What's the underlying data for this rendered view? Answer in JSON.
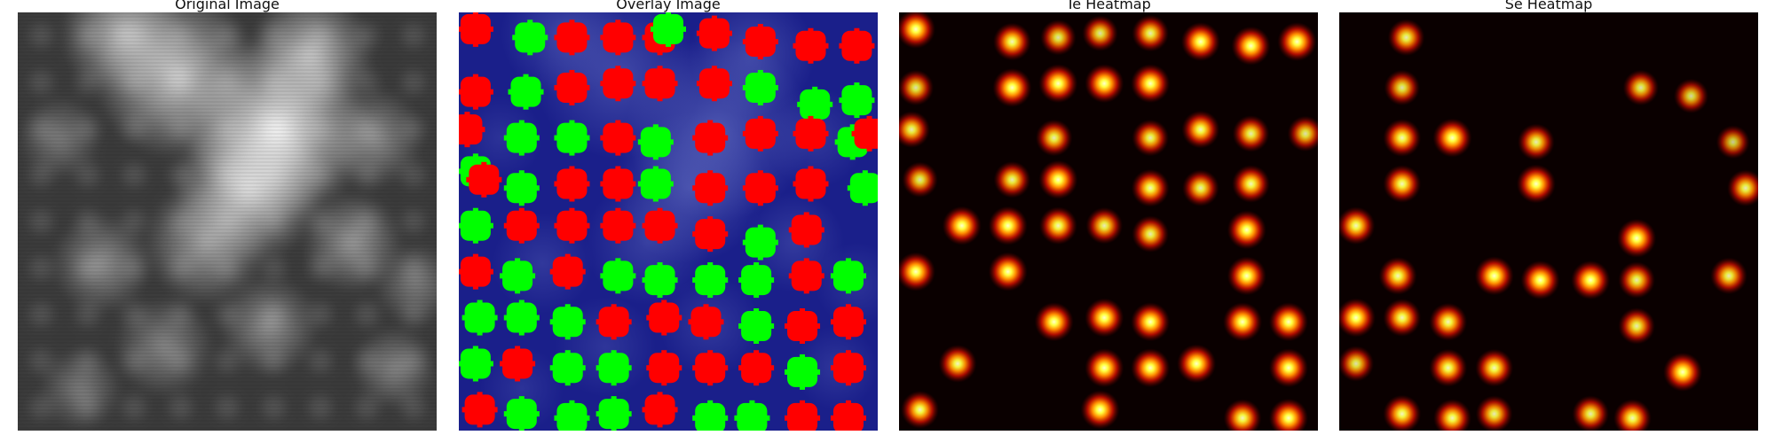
{
  "panels": [
    {
      "id": "original",
      "title": "Original Image"
    },
    {
      "id": "overlay",
      "title": "Overlay Image"
    },
    {
      "id": "te",
      "title": "Te Heatmap"
    },
    {
      "id": "se",
      "title": "Se Heatmap"
    }
  ],
  "colors": {
    "overlay_bg": "#1a1f8a",
    "marker_red": "#ff0000",
    "marker_green": "#00ff00",
    "heat_bg": "#0a0000"
  },
  "markers": [
    {
      "x": 0.04,
      "y": 0.04,
      "c": "r"
    },
    {
      "x": 0.17,
      "y": 0.06,
      "c": "g"
    },
    {
      "x": 0.27,
      "y": 0.06,
      "c": "r"
    },
    {
      "x": 0.38,
      "y": 0.06,
      "c": "r"
    },
    {
      "x": 0.48,
      "y": 0.06,
      "c": "r"
    },
    {
      "x": 0.5,
      "y": 0.04,
      "c": "g"
    },
    {
      "x": 0.61,
      "y": 0.05,
      "c": "r"
    },
    {
      "x": 0.72,
      "y": 0.07,
      "c": "r"
    },
    {
      "x": 0.84,
      "y": 0.08,
      "c": "r"
    },
    {
      "x": 0.95,
      "y": 0.08,
      "c": "r"
    },
    {
      "x": 0.04,
      "y": 0.19,
      "c": "r"
    },
    {
      "x": 0.16,
      "y": 0.19,
      "c": "g"
    },
    {
      "x": 0.27,
      "y": 0.18,
      "c": "r"
    },
    {
      "x": 0.38,
      "y": 0.17,
      "c": "r"
    },
    {
      "x": 0.48,
      "y": 0.17,
      "c": "r"
    },
    {
      "x": 0.61,
      "y": 0.17,
      "c": "r"
    },
    {
      "x": 0.72,
      "y": 0.18,
      "c": "g"
    },
    {
      "x": 0.85,
      "y": 0.22,
      "c": "g"
    },
    {
      "x": 0.95,
      "y": 0.21,
      "c": "g"
    },
    {
      "x": 0.02,
      "y": 0.28,
      "c": "r"
    },
    {
      "x": 0.15,
      "y": 0.3,
      "c": "g"
    },
    {
      "x": 0.27,
      "y": 0.3,
      "c": "g"
    },
    {
      "x": 0.38,
      "y": 0.3,
      "c": "r"
    },
    {
      "x": 0.47,
      "y": 0.31,
      "c": "g"
    },
    {
      "x": 0.6,
      "y": 0.3,
      "c": "r"
    },
    {
      "x": 0.72,
      "y": 0.29,
      "c": "r"
    },
    {
      "x": 0.84,
      "y": 0.29,
      "c": "r"
    },
    {
      "x": 0.94,
      "y": 0.31,
      "c": "g"
    },
    {
      "x": 0.98,
      "y": 0.29,
      "c": "r"
    },
    {
      "x": 0.04,
      "y": 0.38,
      "c": "g"
    },
    {
      "x": 0.06,
      "y": 0.4,
      "c": "r"
    },
    {
      "x": 0.15,
      "y": 0.42,
      "c": "g"
    },
    {
      "x": 0.27,
      "y": 0.41,
      "c": "r"
    },
    {
      "x": 0.38,
      "y": 0.41,
      "c": "r"
    },
    {
      "x": 0.47,
      "y": 0.41,
      "c": "g"
    },
    {
      "x": 0.6,
      "y": 0.42,
      "c": "r"
    },
    {
      "x": 0.72,
      "y": 0.42,
      "c": "r"
    },
    {
      "x": 0.84,
      "y": 0.41,
      "c": "r"
    },
    {
      "x": 0.97,
      "y": 0.42,
      "c": "g"
    },
    {
      "x": 0.04,
      "y": 0.51,
      "c": "g"
    },
    {
      "x": 0.15,
      "y": 0.51,
      "c": "r"
    },
    {
      "x": 0.27,
      "y": 0.51,
      "c": "r"
    },
    {
      "x": 0.38,
      "y": 0.51,
      "c": "r"
    },
    {
      "x": 0.48,
      "y": 0.51,
      "c": "r"
    },
    {
      "x": 0.6,
      "y": 0.53,
      "c": "r"
    },
    {
      "x": 0.72,
      "y": 0.55,
      "c": "g"
    },
    {
      "x": 0.83,
      "y": 0.52,
      "c": "r"
    },
    {
      "x": 0.04,
      "y": 0.62,
      "c": "r"
    },
    {
      "x": 0.14,
      "y": 0.63,
      "c": "g"
    },
    {
      "x": 0.26,
      "y": 0.62,
      "c": "r"
    },
    {
      "x": 0.38,
      "y": 0.63,
      "c": "g"
    },
    {
      "x": 0.48,
      "y": 0.64,
      "c": "g"
    },
    {
      "x": 0.6,
      "y": 0.64,
      "c": "g"
    },
    {
      "x": 0.71,
      "y": 0.64,
      "c": "g"
    },
    {
      "x": 0.83,
      "y": 0.63,
      "c": "r"
    },
    {
      "x": 0.93,
      "y": 0.63,
      "c": "g"
    },
    {
      "x": 0.05,
      "y": 0.73,
      "c": "g"
    },
    {
      "x": 0.15,
      "y": 0.73,
      "c": "g"
    },
    {
      "x": 0.26,
      "y": 0.74,
      "c": "g"
    },
    {
      "x": 0.37,
      "y": 0.74,
      "c": "r"
    },
    {
      "x": 0.49,
      "y": 0.73,
      "c": "r"
    },
    {
      "x": 0.59,
      "y": 0.74,
      "c": "r"
    },
    {
      "x": 0.71,
      "y": 0.75,
      "c": "g"
    },
    {
      "x": 0.82,
      "y": 0.75,
      "c": "r"
    },
    {
      "x": 0.93,
      "y": 0.74,
      "c": "r"
    },
    {
      "x": 0.04,
      "y": 0.84,
      "c": "g"
    },
    {
      "x": 0.14,
      "y": 0.84,
      "c": "r"
    },
    {
      "x": 0.26,
      "y": 0.85,
      "c": "g"
    },
    {
      "x": 0.37,
      "y": 0.85,
      "c": "g"
    },
    {
      "x": 0.49,
      "y": 0.85,
      "c": "r"
    },
    {
      "x": 0.6,
      "y": 0.85,
      "c": "r"
    },
    {
      "x": 0.71,
      "y": 0.85,
      "c": "r"
    },
    {
      "x": 0.82,
      "y": 0.86,
      "c": "g"
    },
    {
      "x": 0.93,
      "y": 0.85,
      "c": "r"
    },
    {
      "x": 0.05,
      "y": 0.95,
      "c": "r"
    },
    {
      "x": 0.15,
      "y": 0.96,
      "c": "g"
    },
    {
      "x": 0.27,
      "y": 0.97,
      "c": "g"
    },
    {
      "x": 0.37,
      "y": 0.96,
      "c": "g"
    },
    {
      "x": 0.48,
      "y": 0.95,
      "c": "r"
    },
    {
      "x": 0.6,
      "y": 0.97,
      "c": "g"
    },
    {
      "x": 0.7,
      "y": 0.97,
      "c": "g"
    },
    {
      "x": 0.82,
      "y": 0.97,
      "c": "r"
    },
    {
      "x": 0.93,
      "y": 0.97,
      "c": "r"
    }
  ],
  "te_spots": [
    [
      0.04,
      0.04,
      1
    ],
    [
      0.27,
      0.07,
      0.9
    ],
    [
      0.38,
      0.06,
      0.7
    ],
    [
      0.48,
      0.05,
      0.7
    ],
    [
      0.6,
      0.05,
      0.8
    ],
    [
      0.72,
      0.07,
      1
    ],
    [
      0.84,
      0.08,
      1
    ],
    [
      0.95,
      0.07,
      1
    ],
    [
      0.04,
      0.18,
      0.7
    ],
    [
      0.27,
      0.18,
      1
    ],
    [
      0.38,
      0.17,
      1
    ],
    [
      0.49,
      0.17,
      1
    ],
    [
      0.6,
      0.17,
      1
    ],
    [
      0.03,
      0.28,
      0.8
    ],
    [
      0.37,
      0.3,
      0.8
    ],
    [
      0.6,
      0.3,
      0.8
    ],
    [
      0.72,
      0.28,
      0.9
    ],
    [
      0.84,
      0.29,
      0.8
    ],
    [
      0.97,
      0.29,
      0.7
    ],
    [
      0.05,
      0.4,
      0.7
    ],
    [
      0.27,
      0.4,
      0.8
    ],
    [
      0.38,
      0.4,
      1
    ],
    [
      0.6,
      0.42,
      0.9
    ],
    [
      0.72,
      0.42,
      0.8
    ],
    [
      0.84,
      0.41,
      0.9
    ],
    [
      0.15,
      0.51,
      1
    ],
    [
      0.26,
      0.51,
      1
    ],
    [
      0.38,
      0.51,
      0.9
    ],
    [
      0.49,
      0.51,
      0.8
    ],
    [
      0.6,
      0.53,
      0.8
    ],
    [
      0.83,
      0.52,
      1
    ],
    [
      0.04,
      0.62,
      1
    ],
    [
      0.26,
      0.62,
      1
    ],
    [
      0.83,
      0.63,
      1
    ],
    [
      0.37,
      0.74,
      1
    ],
    [
      0.49,
      0.73,
      1
    ],
    [
      0.6,
      0.74,
      1
    ],
    [
      0.82,
      0.74,
      1
    ],
    [
      0.93,
      0.74,
      1
    ],
    [
      0.14,
      0.84,
      0.9
    ],
    [
      0.49,
      0.85,
      1
    ],
    [
      0.6,
      0.85,
      1
    ],
    [
      0.71,
      0.84,
      1
    ],
    [
      0.93,
      0.85,
      1
    ],
    [
      0.05,
      0.95,
      0.9
    ],
    [
      0.48,
      0.95,
      1
    ],
    [
      0.82,
      0.97,
      0.9
    ],
    [
      0.93,
      0.97,
      1
    ]
  ],
  "se_spots": [
    [
      0.16,
      0.06,
      0.8
    ],
    [
      0.15,
      0.18,
      0.7
    ],
    [
      0.72,
      0.18,
      0.7
    ],
    [
      0.84,
      0.2,
      0.6
    ],
    [
      0.15,
      0.3,
      0.9
    ],
    [
      0.27,
      0.3,
      1
    ],
    [
      0.47,
      0.31,
      0.8
    ],
    [
      0.94,
      0.31,
      0.5
    ],
    [
      0.15,
      0.41,
      0.9
    ],
    [
      0.47,
      0.41,
      1
    ],
    [
      0.97,
      0.42,
      0.8
    ],
    [
      0.04,
      0.51,
      0.9
    ],
    [
      0.71,
      0.54,
      1
    ],
    [
      0.14,
      0.63,
      0.9
    ],
    [
      0.37,
      0.63,
      1
    ],
    [
      0.48,
      0.64,
      1
    ],
    [
      0.6,
      0.64,
      1
    ],
    [
      0.71,
      0.64,
      0.8
    ],
    [
      0.93,
      0.63,
      0.8
    ],
    [
      0.04,
      0.73,
      1
    ],
    [
      0.15,
      0.73,
      0.9
    ],
    [
      0.26,
      0.74,
      0.9
    ],
    [
      0.71,
      0.75,
      0.8
    ],
    [
      0.04,
      0.84,
      0.7
    ],
    [
      0.26,
      0.85,
      0.9
    ],
    [
      0.37,
      0.85,
      0.9
    ],
    [
      0.82,
      0.86,
      1
    ],
    [
      0.15,
      0.96,
      0.9
    ],
    [
      0.27,
      0.97,
      0.9
    ],
    [
      0.37,
      0.96,
      0.8
    ],
    [
      0.6,
      0.96,
      0.8
    ],
    [
      0.7,
      0.97,
      0.9
    ]
  ],
  "gray_blobs": [
    [
      0.62,
      0.28,
      0.22,
      0.95
    ],
    [
      0.55,
      0.42,
      0.18,
      0.8
    ],
    [
      0.38,
      0.15,
      0.2,
      0.75
    ],
    [
      0.25,
      0.05,
      0.15,
      0.65
    ],
    [
      0.7,
      0.1,
      0.15,
      0.7
    ],
    [
      0.45,
      0.55,
      0.15,
      0.55
    ],
    [
      0.8,
      0.55,
      0.12,
      0.5
    ],
    [
      0.2,
      0.6,
      0.12,
      0.45
    ],
    [
      0.6,
      0.75,
      0.12,
      0.45
    ],
    [
      0.9,
      0.85,
      0.1,
      0.4
    ],
    [
      0.1,
      0.3,
      0.1,
      0.35
    ],
    [
      0.35,
      0.8,
      0.12,
      0.4
    ],
    [
      0.85,
      0.3,
      0.12,
      0.45
    ],
    [
      0.15,
      0.9,
      0.1,
      0.35
    ],
    [
      0.95,
      0.65,
      0.1,
      0.35
    ]
  ]
}
